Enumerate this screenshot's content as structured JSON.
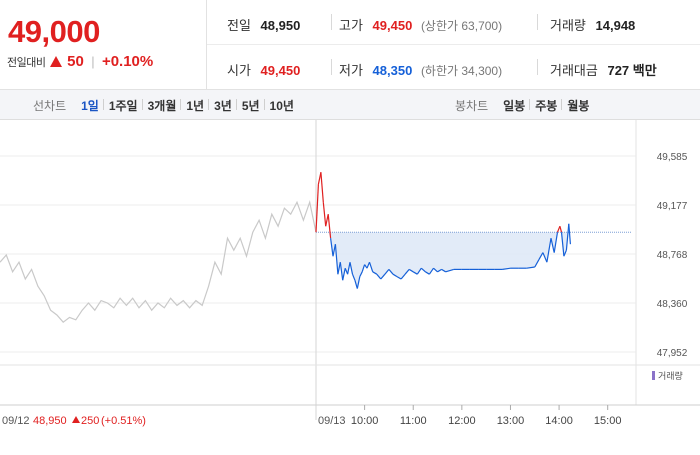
{
  "quote": {
    "current_price": "49,000",
    "change_label": "전일대비",
    "change_amount": "50",
    "change_percent": "+0.10%",
    "change_direction": "up"
  },
  "stats": {
    "prev_close_label": "전일",
    "prev_close": "48,950",
    "high_label": "고가",
    "high": "49,450",
    "upper_limit": "(상한가 63,700)",
    "volume_label": "거래량",
    "volume": "14,948",
    "open_label": "시가",
    "open": "49,450",
    "low_label": "저가",
    "low": "48,350",
    "lower_limit": "(하한가 34,300)",
    "amount_label": "거래대금",
    "amount": "727 백만"
  },
  "tabs": {
    "line_chart_label": "선차트",
    "periods": [
      "1일",
      "1주일",
      "3개월",
      "1년",
      "3년",
      "5년",
      "10년"
    ],
    "active_period": "1일",
    "candle_chart_label": "봉차트",
    "candles": [
      "일봉",
      "주봉",
      "월봉"
    ]
  },
  "chart_data": {
    "type": "line",
    "price_ticks": [
      "49,585",
      "49,177",
      "48,768",
      "48,360",
      "47,952"
    ],
    "ylim": [
      47952,
      49585
    ],
    "baseline": 48950,
    "volume_legend": "거래량",
    "prev_day": {
      "date": "09/12",
      "close": "48,950",
      "change": "250",
      "change_percent": "(+0.51%)",
      "series": [
        [
          0,
          48700
        ],
        [
          0.02,
          48760
        ],
        [
          0.04,
          48620
        ],
        [
          0.06,
          48700
        ],
        [
          0.08,
          48560
        ],
        [
          0.1,
          48640
        ],
        [
          0.12,
          48500
        ],
        [
          0.14,
          48420
        ],
        [
          0.16,
          48300
        ],
        [
          0.18,
          48260
        ],
        [
          0.2,
          48200
        ],
        [
          0.22,
          48240
        ],
        [
          0.24,
          48220
        ],
        [
          0.26,
          48300
        ],
        [
          0.28,
          48360
        ],
        [
          0.3,
          48300
        ],
        [
          0.32,
          48380
        ],
        [
          0.34,
          48360
        ],
        [
          0.36,
          48320
        ],
        [
          0.38,
          48400
        ],
        [
          0.4,
          48340
        ],
        [
          0.42,
          48400
        ],
        [
          0.44,
          48320
        ],
        [
          0.46,
          48380
        ],
        [
          0.48,
          48300
        ],
        [
          0.5,
          48360
        ],
        [
          0.52,
          48320
        ],
        [
          0.54,
          48400
        ],
        [
          0.56,
          48340
        ],
        [
          0.58,
          48380
        ],
        [
          0.6,
          48320
        ],
        [
          0.62,
          48380
        ],
        [
          0.64,
          48340
        ],
        [
          0.66,
          48500
        ],
        [
          0.68,
          48700
        ],
        [
          0.7,
          48600
        ],
        [
          0.72,
          48900
        ],
        [
          0.74,
          48800
        ],
        [
          0.76,
          48900
        ],
        [
          0.78,
          48750
        ],
        [
          0.8,
          48950
        ],
        [
          0.82,
          49050
        ],
        [
          0.84,
          48900
        ],
        [
          0.86,
          49100
        ],
        [
          0.88,
          49000
        ],
        [
          0.9,
          49150
        ],
        [
          0.92,
          49100
        ],
        [
          0.94,
          49200
        ],
        [
          0.96,
          49050
        ],
        [
          0.98,
          49200
        ],
        [
          1.0,
          48950
        ]
      ]
    },
    "today": {
      "date": "09/13",
      "time_labels": [
        "10:00",
        "11:00",
        "12:00",
        "13:00",
        "14:00",
        "15:00"
      ],
      "open_minute": 0,
      "series": [
        [
          0,
          48950
        ],
        [
          3,
          49350
        ],
        [
          6,
          49450
        ],
        [
          9,
          49200
        ],
        [
          12,
          49000
        ],
        [
          15,
          49100
        ],
        [
          18,
          48900
        ],
        [
          21,
          48750
        ],
        [
          24,
          48850
        ],
        [
          27,
          48600
        ],
        [
          30,
          48700
        ],
        [
          33,
          48550
        ],
        [
          36,
          48650
        ],
        [
          39,
          48600
        ],
        [
          42,
          48700
        ],
        [
          45,
          48600
        ],
        [
          48,
          48550
        ],
        [
          51,
          48480
        ],
        [
          54,
          48580
        ],
        [
          57,
          48620
        ],
        [
          60,
          48680
        ],
        [
          63,
          48650
        ],
        [
          66,
          48700
        ],
        [
          70,
          48620
        ],
        [
          75,
          48600
        ],
        [
          80,
          48560
        ],
        [
          85,
          48600
        ],
        [
          90,
          48640
        ],
        [
          95,
          48600
        ],
        [
          100,
          48580
        ],
        [
          105,
          48560
        ],
        [
          110,
          48600
        ],
        [
          115,
          48640
        ],
        [
          120,
          48620
        ],
        [
          125,
          48600
        ],
        [
          130,
          48650
        ],
        [
          135,
          48620
        ],
        [
          140,
          48600
        ],
        [
          145,
          48650
        ],
        [
          150,
          48620
        ],
        [
          155,
          48640
        ],
        [
          160,
          48620
        ],
        [
          170,
          48640
        ],
        [
          180,
          48640
        ],
        [
          190,
          48640
        ],
        [
          200,
          48640
        ],
        [
          210,
          48640
        ],
        [
          220,
          48640
        ],
        [
          230,
          48640
        ],
        [
          240,
          48650
        ],
        [
          250,
          48650
        ],
        [
          260,
          48650
        ],
        [
          270,
          48660
        ],
        [
          275,
          48720
        ],
        [
          280,
          48780
        ],
        [
          285,
          48700
        ],
        [
          290,
          48900
        ],
        [
          294,
          48780
        ],
        [
          298,
          48950
        ],
        [
          301,
          49000
        ],
        [
          303,
          48950
        ],
        [
          306,
          48750
        ],
        [
          309,
          48800
        ],
        [
          312,
          49020
        ],
        [
          314,
          48850
        ]
      ]
    }
  },
  "colors": {
    "up": "#e02020",
    "down": "#1560d8",
    "prev_day_line": "#c9c9c9",
    "fill": "#dfe9f7"
  }
}
